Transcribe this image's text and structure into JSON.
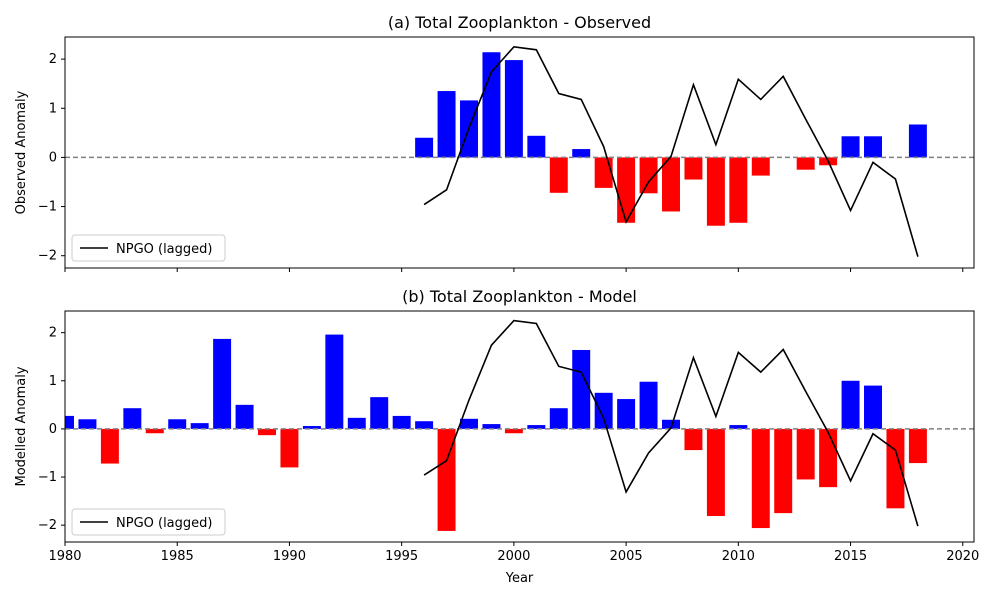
{
  "chart_data": [
    {
      "type": "bar",
      "title": "(a) Total Zooplankton - Observed",
      "ylabel": "Observed Anomaly",
      "xlabel": "",
      "xlim": [
        1980,
        2020.5
      ],
      "ylim": [
        -2.25,
        2.45
      ],
      "xticks": [
        1980,
        1985,
        1990,
        1995,
        2000,
        2005,
        2010,
        2015,
        2020
      ],
      "yticks": [
        -2,
        -1,
        0,
        1,
        2
      ],
      "x_tick_labels_shown": false,
      "positive_color": "#0000ff",
      "negative_color": "#ff0000",
      "bars": {
        "x": [
          1996,
          1997,
          1998,
          1999,
          2000,
          2001,
          2002,
          2003,
          2004,
          2005,
          2006,
          2007,
          2008,
          2009,
          2010,
          2011,
          2012,
          2013,
          2014,
          2015,
          2016,
          2017,
          2018
        ],
        "values": [
          0.4,
          1.35,
          1.16,
          2.14,
          1.98,
          0.44,
          -0.72,
          0.17,
          -0.62,
          -1.33,
          -0.73,
          -1.1,
          -0.45,
          -1.39,
          -1.33,
          -0.37,
          0.0,
          -0.25,
          -0.16,
          0.43,
          0.43,
          0.0,
          0.67
        ]
      },
      "line": {
        "name": "NPGO (lagged)",
        "x": [
          1996,
          1997,
          1998,
          1999,
          2000,
          2001,
          2002,
          2003,
          2004,
          2005,
          2006,
          2007,
          2008,
          2009,
          2010,
          2011,
          2012,
          2013,
          2014,
          2015,
          2016,
          2017,
          2018
        ],
        "values": [
          -0.96,
          -0.66,
          0.6,
          1.74,
          2.25,
          2.19,
          1.3,
          1.18,
          0.22,
          -1.31,
          -0.5,
          0.02,
          1.48,
          0.26,
          1.59,
          1.18,
          1.65,
          0.78,
          -0.07,
          -1.08,
          -0.1,
          -0.44,
          -2.02
        ]
      },
      "reference_line": 0,
      "legend": "lower-left"
    },
    {
      "type": "bar",
      "title": "(b) Total Zooplankton - Model",
      "ylabel": "Modelled Anomaly",
      "xlabel": "Year",
      "xlim": [
        1980,
        2020.5
      ],
      "ylim": [
        -2.35,
        2.45
      ],
      "xticks": [
        1980,
        1985,
        1990,
        1995,
        2000,
        2005,
        2010,
        2015,
        2020
      ],
      "yticks": [
        -2,
        -1,
        0,
        1,
        2
      ],
      "x_tick_labels_shown": true,
      "positive_color": "#0000ff",
      "negative_color": "#ff0000",
      "bars": {
        "x": [
          1980,
          1981,
          1982,
          1983,
          1984,
          1985,
          1986,
          1987,
          1988,
          1989,
          1990,
          1991,
          1992,
          1993,
          1994,
          1995,
          1996,
          1997,
          1998,
          1999,
          2000,
          2001,
          2002,
          2003,
          2004,
          2005,
          2006,
          2007,
          2008,
          2009,
          2010,
          2011,
          2012,
          2013,
          2014,
          2015,
          2016,
          2017,
          2018
        ],
        "values": [
          0.27,
          0.2,
          -0.72,
          0.43,
          -0.09,
          0.2,
          0.12,
          1.87,
          0.5,
          -0.13,
          -0.8,
          0.06,
          1.96,
          0.23,
          0.66,
          0.27,
          0.16,
          -2.12,
          0.21,
          0.1,
          -0.09,
          0.08,
          0.43,
          1.64,
          0.75,
          0.62,
          0.98,
          0.19,
          -0.44,
          -1.81,
          0.08,
          -2.06,
          -1.75,
          -1.05,
          -1.21,
          1.0,
          0.9,
          -1.65,
          -0.71
        ]
      },
      "line": {
        "name": "NPGO (lagged)",
        "x": [
          1996,
          1997,
          1998,
          1999,
          2000,
          2001,
          2002,
          2003,
          2004,
          2005,
          2006,
          2007,
          2008,
          2009,
          2010,
          2011,
          2012,
          2013,
          2014,
          2015,
          2016,
          2017,
          2018
        ],
        "values": [
          -0.96,
          -0.66,
          0.6,
          1.74,
          2.25,
          2.19,
          1.3,
          1.18,
          0.22,
          -1.31,
          -0.5,
          0.02,
          1.48,
          0.26,
          1.59,
          1.18,
          1.65,
          0.78,
          -0.07,
          -1.08,
          -0.1,
          -0.44,
          -2.02
        ]
      },
      "reference_line": 0,
      "legend": "lower-left"
    }
  ]
}
